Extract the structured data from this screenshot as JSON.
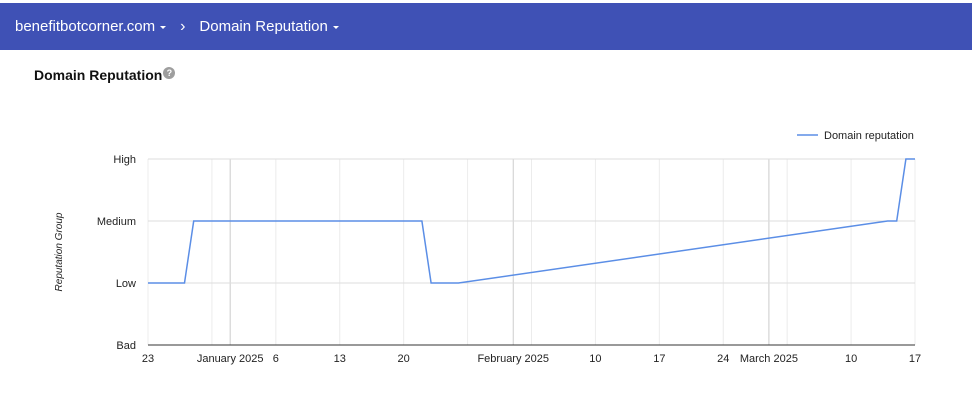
{
  "header": {
    "site": "benefitbotcorner.com",
    "separator": "›",
    "section": "Domain Reputation"
  },
  "page": {
    "title": "Domain Reputation",
    "help_glyph": "?"
  },
  "colors": {
    "header_bg": "#3f51b5",
    "series_line": "#5b8ee6"
  },
  "chart_data": {
    "type": "line",
    "ylabel": "Reputation Group",
    "y_categories": [
      "Bad",
      "Low",
      "Medium",
      "High"
    ],
    "x_range": [
      "2024-12-23",
      "2025-03-17"
    ],
    "x_ticks": [
      {
        "date": "2024-12-23",
        "label": "23",
        "major": false
      },
      {
        "date": "2024-12-30",
        "label": "",
        "major": false
      },
      {
        "date": "2025-01-01",
        "label": "January 2025",
        "major": true
      },
      {
        "date": "2025-01-06",
        "label": "6",
        "major": false
      },
      {
        "date": "2025-01-13",
        "label": "13",
        "major": false
      },
      {
        "date": "2025-01-20",
        "label": "20",
        "major": false
      },
      {
        "date": "2025-01-27",
        "label": "",
        "major": false
      },
      {
        "date": "2025-02-01",
        "label": "February 2025",
        "major": true
      },
      {
        "date": "2025-02-03",
        "label": "",
        "major": false
      },
      {
        "date": "2025-02-10",
        "label": "10",
        "major": false
      },
      {
        "date": "2025-02-17",
        "label": "17",
        "major": false
      },
      {
        "date": "2025-02-24",
        "label": "24",
        "major": false
      },
      {
        "date": "2025-03-01",
        "label": "March 2025",
        "major": true
      },
      {
        "date": "2025-03-03",
        "label": "",
        "major": false
      },
      {
        "date": "2025-03-10",
        "label": "10",
        "major": false
      },
      {
        "date": "2025-03-17",
        "label": "17",
        "major": false
      }
    ],
    "legend": {
      "position": "top-right"
    },
    "series": [
      {
        "name": "Domain reputation",
        "points": [
          {
            "x": "2024-12-23",
            "y": "Low"
          },
          {
            "x": "2024-12-27",
            "y": "Low"
          },
          {
            "x": "2024-12-28",
            "y": "Medium"
          },
          {
            "x": "2025-01-22",
            "y": "Medium"
          },
          {
            "x": "2025-01-23",
            "y": "Low"
          },
          {
            "x": "2025-01-26",
            "y": "Low"
          },
          {
            "x": "2025-03-14",
            "y": "Medium"
          },
          {
            "x": "2025-03-15",
            "y": "Medium"
          },
          {
            "x": "2025-03-16",
            "y": "High"
          },
          {
            "x": "2025-03-17",
            "y": "High"
          }
        ]
      }
    ]
  }
}
